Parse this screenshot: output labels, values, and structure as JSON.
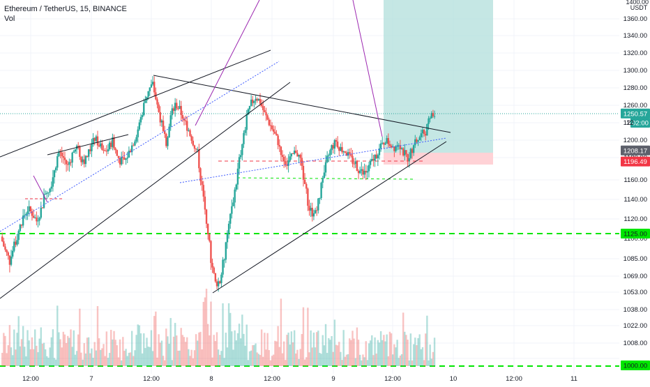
{
  "header": {
    "symbol_line": "Ethereum / TetherUS, 15, BINANCE",
    "volume_label": "Vol"
  },
  "colors": {
    "up": "#26a69a",
    "down": "#ef5350",
    "trendline": "#131722",
    "fib_line": "#3d5afe",
    "purple_line": "#9c27b0",
    "support_green": "#00e600",
    "red_dash": "#f23645",
    "target_zone": "#b2dfdb",
    "stop_zone": "#ffcdd2"
  },
  "chart_data": {
    "type": "candlestick",
    "price_axis": {
      "unit": "USDT",
      "ticks": [
        "1360.00",
        "1340.00",
        "1320.00",
        "1300.00",
        "1280.00",
        "1260.00",
        "1220.00",
        "1200.00",
        "1180.00",
        "1160.00",
        "1140.00",
        "1120.00",
        "1100.00",
        "1085.00",
        "1069.00",
        "1053.00",
        "1038.00",
        "1022.00",
        "1008.00"
      ],
      "top_clip_label": "1400.00"
    },
    "time_axis": {
      "ticks": [
        "12:00",
        "7",
        "12:00",
        "8",
        "12:00",
        "9",
        "12:00",
        "10",
        "12:00",
        "11"
      ]
    },
    "price_labels": [
      {
        "text": "1250.57",
        "kind": "last_price",
        "price": 1250.57
      },
      {
        "text": "02:00",
        "kind": "countdown",
        "price": 1239
      },
      {
        "text": "1208.17",
        "kind": "marker",
        "price": 1208.17
      },
      {
        "text": "1196.49",
        "kind": "stop",
        "price": 1196.49
      },
      {
        "text": "1125.00",
        "kind": "support",
        "price": 1125
      },
      {
        "text": "1000.00",
        "kind": "support",
        "price": 1000
      }
    ],
    "partial_label": "12",
    "price_path": [
      1122,
      1108,
      1098,
      1112,
      1128,
      1142,
      1150,
      1146,
      1138,
      1150,
      1168,
      1172,
      1190,
      1206,
      1200,
      1192,
      1204,
      1212,
      1200,
      1198,
      1210,
      1222,
      1215,
      1205,
      1210,
      1220,
      1202,
      1196,
      1198,
      1210,
      1222,
      1238,
      1260,
      1278,
      1284,
      1260,
      1238,
      1218,
      1248,
      1262,
      1255,
      1242,
      1232,
      1218,
      1205,
      1172,
      1140,
      1100,
      1078,
      1080,
      1102,
      1135,
      1160,
      1188,
      1215,
      1245,
      1262,
      1270,
      1264,
      1250,
      1240,
      1230,
      1218,
      1202,
      1195,
      1200,
      1208,
      1198,
      1175,
      1150,
      1145,
      1158,
      1180,
      1198,
      1212,
      1218,
      1210,
      1208,
      1200,
      1196,
      1190,
      1185,
      1188,
      1196,
      1204,
      1212,
      1220,
      1216,
      1212,
      1218,
      1206,
      1200,
      1210,
      1220,
      1226,
      1230,
      1246,
      1250
    ],
    "volume_max_hint": "relative"
  }
}
